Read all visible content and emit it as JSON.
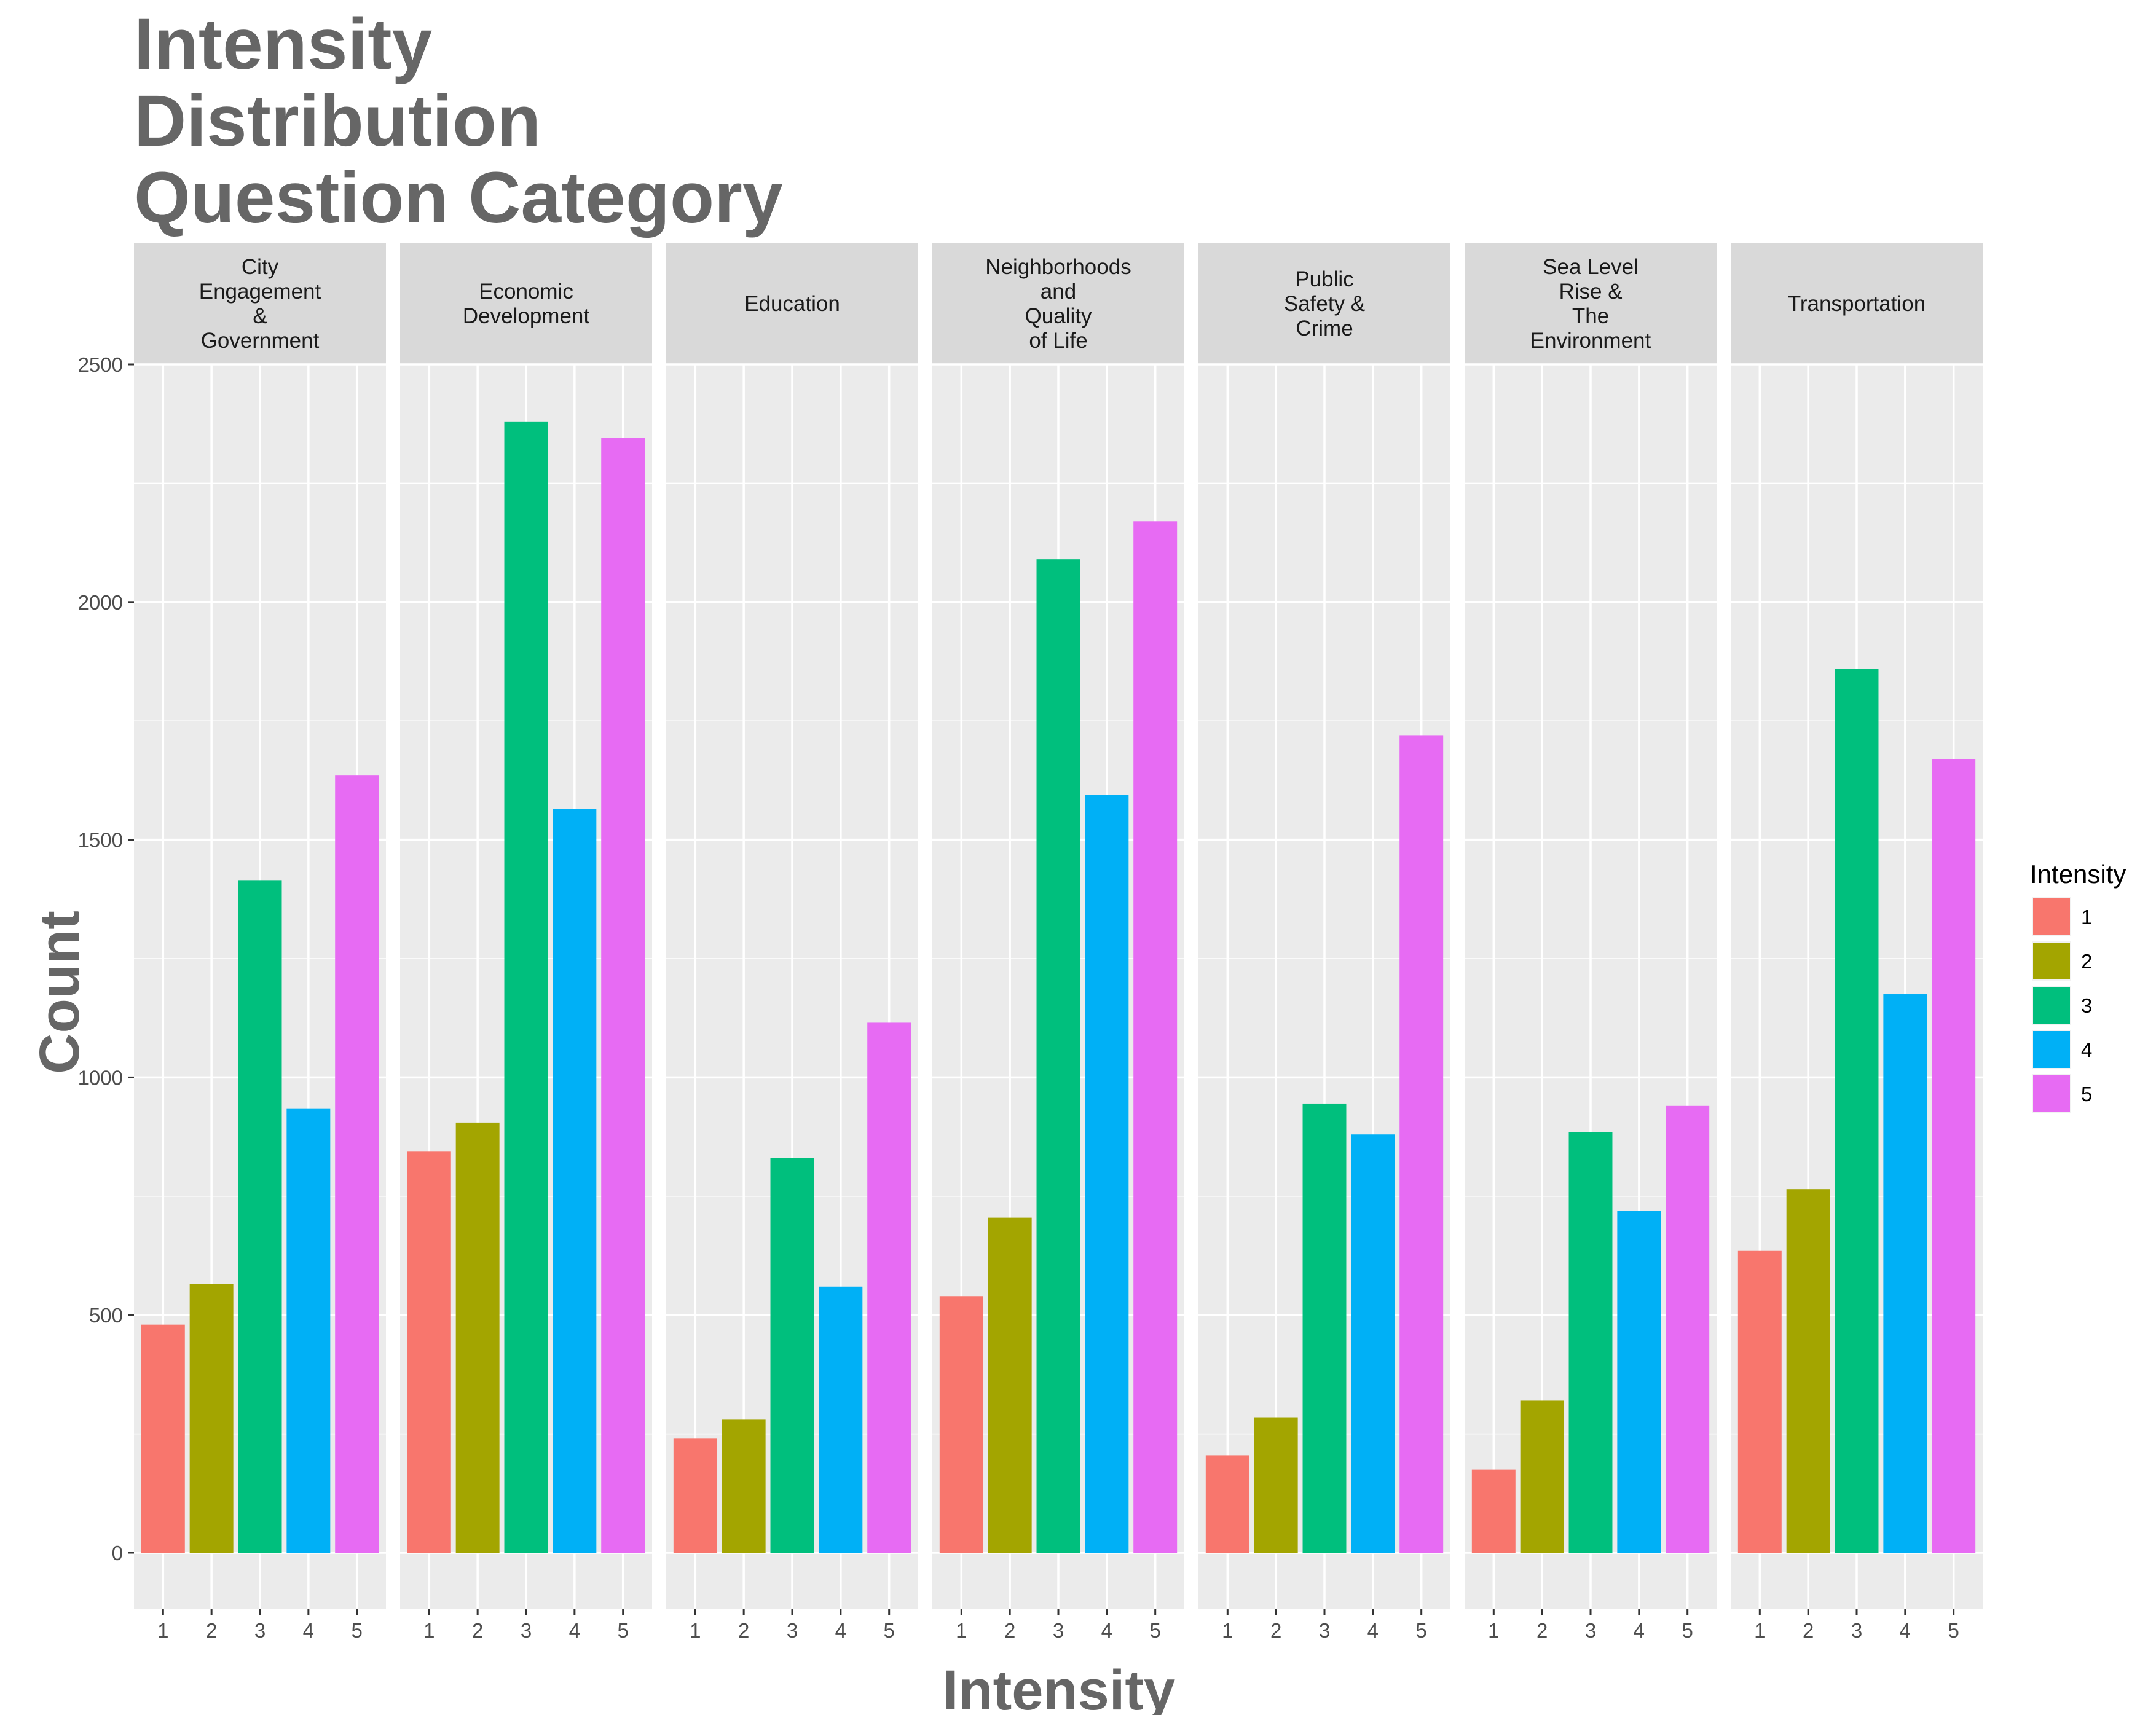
{
  "chart_data": {
    "type": "bar",
    "title_lines": [
      "Intensity",
      "Distribution",
      "Question Category"
    ],
    "xlabel": "Intensity",
    "ylabel": "Count",
    "ylim": [
      -250,
      2730
    ],
    "yticks": [
      0,
      500,
      1000,
      1500,
      2000,
      2500
    ],
    "categories": [
      "1",
      "2",
      "3",
      "4",
      "5"
    ],
    "colors": {
      "1": "#F8766D",
      "2": "#A3A500",
      "3": "#00BF7D",
      "4": "#00B0F6",
      "5": "#E76BF3"
    },
    "legend": {
      "title": "Intensity",
      "position": "right",
      "entries": [
        "1",
        "2",
        "3",
        "4",
        "5"
      ]
    },
    "grid": true,
    "facets": [
      {
        "label_lines": [
          "City",
          "Engagement",
          "&",
          "Government"
        ],
        "values": [
          480,
          565,
          1415,
          935,
          1635
        ]
      },
      {
        "label_lines": [
          "Economic",
          "Development"
        ],
        "values": [
          845,
          905,
          2380,
          1565,
          2345
        ]
      },
      {
        "label_lines": [
          "Education"
        ],
        "values": [
          240,
          280,
          830,
          560,
          1115
        ]
      },
      {
        "label_lines": [
          "Neighborhoods",
          "and",
          "Quality",
          "of Life"
        ],
        "values": [
          540,
          705,
          2090,
          1595,
          2170
        ]
      },
      {
        "label_lines": [
          "Public",
          "Safety &",
          "Crime"
        ],
        "values": [
          205,
          285,
          945,
          880,
          1720
        ]
      },
      {
        "label_lines": [
          "Sea Level",
          "Rise &",
          "The",
          "Environment"
        ],
        "values": [
          175,
          320,
          885,
          720,
          940
        ]
      },
      {
        "label_lines": [
          "Transportation"
        ],
        "values": [
          635,
          765,
          1860,
          1175,
          1670
        ]
      }
    ]
  }
}
